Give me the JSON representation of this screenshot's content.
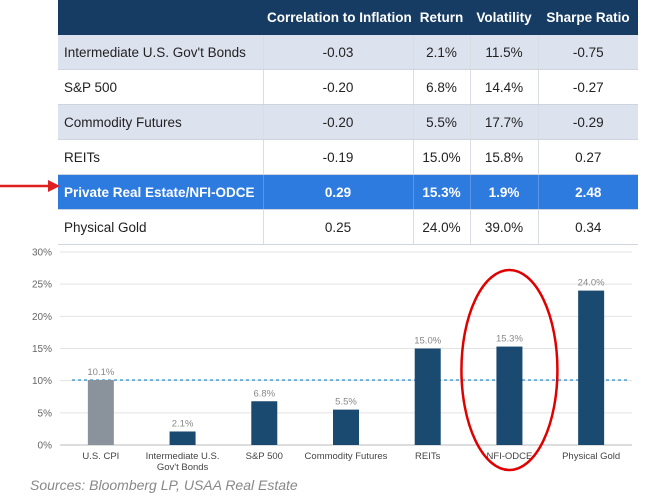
{
  "table": {
    "headers": [
      "",
      "Correlation to Inflation",
      "Return",
      "Volatility",
      "Sharpe Ratio"
    ],
    "rows": [
      {
        "asset": "Intermediate U.S. Gov't Bonds",
        "correlation": "-0.03",
        "return": "2.1%",
        "volatility": "11.5%",
        "sharpe": "-0.75"
      },
      {
        "asset": "S&P 500",
        "correlation": "-0.20",
        "return": "6.8%",
        "volatility": "14.4%",
        "sharpe": "-0.27"
      },
      {
        "asset": "Commodity Futures",
        "correlation": "-0.20",
        "return": "5.5%",
        "volatility": "17.7%",
        "sharpe": "-0.29"
      },
      {
        "asset": "REITs",
        "correlation": "-0.19",
        "return": "15.0%",
        "volatility": "15.8%",
        "sharpe": "0.27"
      },
      {
        "asset": "Private Real Estate/NFI-ODCE",
        "correlation": "0.29",
        "return": "15.3%",
        "volatility": "1.9%",
        "sharpe": "2.48"
      },
      {
        "asset": "Physical Gold",
        "correlation": "0.25",
        "return": "24.0%",
        "volatility": "39.0%",
        "sharpe": "0.34"
      }
    ],
    "highlight_row": 4,
    "colors": {
      "header_bg": "#163c63",
      "stripe": "#dde2ef",
      "highlight": "#2e7be0",
      "arrow": "#e02020"
    }
  },
  "chart_data": {
    "type": "bar",
    "categories": [
      "U.S. CPI",
      "Intermediate U.S. Gov't Bonds",
      "S&P 500",
      "Commodity Futures",
      "REITs",
      "NFI-ODCE",
      "Physical Gold"
    ],
    "values": [
      10.1,
      2.1,
      6.8,
      5.5,
      15.0,
      15.3,
      24.0
    ],
    "data_labels": [
      "10.1%",
      "2.1%",
      "6.8%",
      "5.5%",
      "15.0%",
      "15.3%",
      "24.0%"
    ],
    "yticks": [
      "0%",
      "5%",
      "10%",
      "15%",
      "20%",
      "25%",
      "30%"
    ],
    "ylim": [
      0,
      30
    ],
    "reference_line": 10.1,
    "grid": true,
    "colors": {
      "cpi_bar": "#8a929c",
      "bar": "#1a4a70",
      "reference_line": "#2a8fd0",
      "circle": "#e00000"
    },
    "circled_category": "NFI-ODCE"
  },
  "source": "Sources: Bloomberg LP, USAA Real Estate"
}
